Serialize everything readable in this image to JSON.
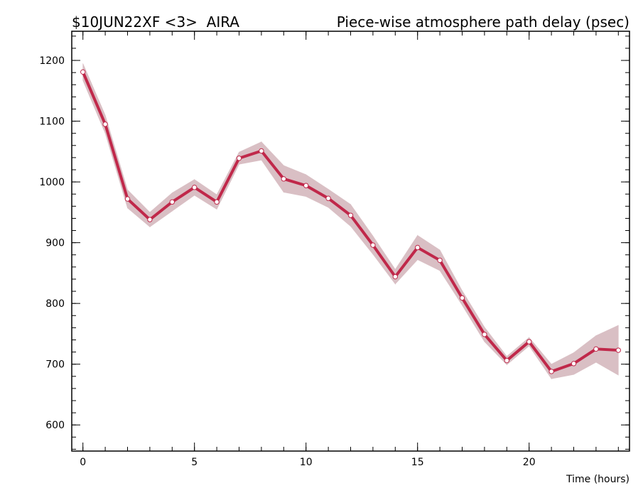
{
  "chart_data": {
    "type": "line",
    "title_left": "$10JUN22XF <3>  AIRA",
    "title_right": "Piece-wise atmosphere path delay (psec)",
    "xlabel": "Time (hours)",
    "x": [
      0,
      1,
      2,
      3,
      4,
      5,
      6,
      7,
      8,
      9,
      10,
      11,
      12,
      13,
      14,
      15,
      16,
      17,
      18,
      19,
      20,
      21,
      22,
      23,
      24
    ],
    "series": [
      {
        "color": "#c0284a",
        "band_color": "#d9bfc4",
        "values": [
          1181,
          1095,
          972,
          938,
          967,
          991,
          967,
          1039,
          1051,
          1005,
          994,
          973,
          945,
          896,
          844,
          892,
          871,
          809,
          749,
          706,
          737,
          688,
          701,
          725,
          723
        ],
        "errors": [
          14,
          15,
          15,
          12,
          15,
          13,
          12,
          10,
          15,
          22,
          18,
          15,
          18,
          15,
          12,
          20,
          17,
          12,
          12,
          7,
          7,
          12,
          18,
          22,
          41
        ]
      }
    ],
    "xlim": [
      -0.5,
      24.5
    ],
    "ylim": [
      557,
      1248
    ],
    "xticks": [
      0,
      5,
      10,
      15,
      20
    ],
    "yticks": [
      600,
      700,
      800,
      900,
      1000,
      1100,
      1200
    ],
    "xminorticks": [
      0,
      1,
      2,
      3,
      4,
      5,
      6,
      7,
      8,
      9,
      10,
      11,
      12,
      13,
      14,
      15,
      16,
      17,
      18,
      19,
      20,
      21,
      22,
      23,
      24
    ],
    "yminorticks": [
      560,
      580,
      600,
      620,
      640,
      660,
      680,
      700,
      720,
      740,
      760,
      780,
      800,
      820,
      840,
      860,
      880,
      900,
      920,
      940,
      960,
      980,
      1000,
      1020,
      1040,
      1060,
      1080,
      1100,
      1120,
      1140,
      1160,
      1180,
      1200,
      1220,
      1240
    ]
  }
}
